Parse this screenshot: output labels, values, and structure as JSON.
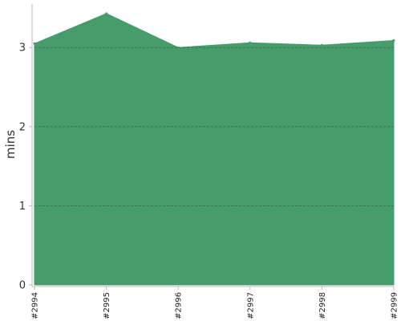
{
  "chart_data": {
    "type": "area",
    "categories": [
      "#2994",
      "#2995",
      "#2996",
      "#2997",
      "#2998",
      "#2999"
    ],
    "series": [
      {
        "values": [
          3.05,
          3.43,
          3.0,
          3.06,
          3.03,
          3.09
        ]
      }
    ],
    "ylabel": "mins",
    "ylim": [
      0,
      3.55
    ],
    "yticks": [
      0,
      1,
      2,
      3
    ],
    "grid": true,
    "fill_color": "#469c6b",
    "grid_color": "#2f6b48",
    "axis_color": "#bbbbbb"
  }
}
